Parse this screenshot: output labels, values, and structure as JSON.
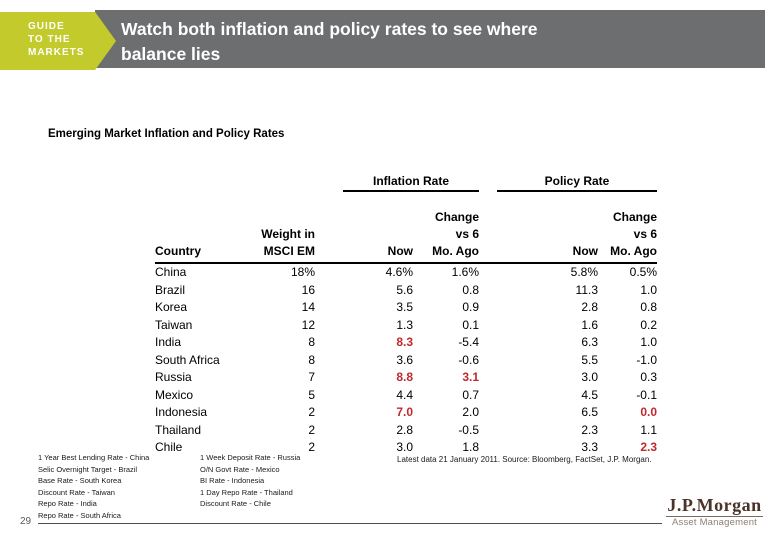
{
  "header": {
    "badge": "GUIDE\nTO THE\nMARKETS",
    "title": "Watch both inflation and policy rates to see where\nbalance lies"
  },
  "subtitle": "Emerging Market  Inflation and Policy Rates",
  "table": {
    "groups": {
      "inflation": "Inflation Rate",
      "policy": "Policy Rate"
    },
    "headers": {
      "country": "Country",
      "weight": "Weight in\nMSCI EM",
      "now": "Now",
      "change": "Change\nvs 6\nMo. Ago"
    },
    "rows": [
      {
        "country": "China",
        "weight": "18%",
        "infl_now": "4.6%",
        "infl_chg": "1.6%",
        "pol_now": "5.8%",
        "pol_chg": "0.5%",
        "red": []
      },
      {
        "country": "Brazil",
        "weight": "16",
        "infl_now": "5.6",
        "infl_chg": "0.8",
        "pol_now": "11.3",
        "pol_chg": "1.0",
        "red": []
      },
      {
        "country": "Korea",
        "weight": "14",
        "infl_now": "3.5",
        "infl_chg": "0.9",
        "pol_now": "2.8",
        "pol_chg": "0.8",
        "red": []
      },
      {
        "country": "Taiwan",
        "weight": "12",
        "infl_now": "1.3",
        "infl_chg": "0.1",
        "pol_now": "1.6",
        "pol_chg": "0.2",
        "red": []
      },
      {
        "country": "India",
        "weight": "8",
        "infl_now": "8.3",
        "infl_chg": "-5.4",
        "pol_now": "6.3",
        "pol_chg": "1.0",
        "red": [
          "infl_now"
        ]
      },
      {
        "country": "South Africa",
        "weight": "8",
        "infl_now": "3.6",
        "infl_chg": "-0.6",
        "pol_now": "5.5",
        "pol_chg": "-1.0",
        "red": []
      },
      {
        "country": "Russia",
        "weight": "7",
        "infl_now": "8.8",
        "infl_chg": "3.1",
        "pol_now": "3.0",
        "pol_chg": "0.3",
        "red": [
          "infl_now",
          "infl_chg"
        ]
      },
      {
        "country": "Mexico",
        "weight": "5",
        "infl_now": "4.4",
        "infl_chg": "0.7",
        "pol_now": "4.5",
        "pol_chg": "-0.1",
        "red": []
      },
      {
        "country": "Indonesia",
        "weight": "2",
        "infl_now": "7.0",
        "infl_chg": "2.0",
        "pol_now": "6.5",
        "pol_chg": "0.0",
        "red": [
          "infl_now",
          "pol_chg"
        ]
      },
      {
        "country": "Thailand",
        "weight": "2",
        "infl_now": "2.8",
        "infl_chg": "-0.5",
        "pol_now": "2.3",
        "pol_chg": "1.1",
        "red": []
      },
      {
        "country": "Chile",
        "weight": "2",
        "infl_now": "3.0",
        "infl_chg": "1.8",
        "pol_now": "3.3",
        "pol_chg": "2.3",
        "red": [
          "pol_chg"
        ]
      }
    ]
  },
  "footnotes": {
    "col1": [
      "1 Year Best Lending Rate - China",
      "Selic Overnight Target - Brazil",
      "Base Rate - South Korea",
      "Discount Rate - Taiwan",
      "Repo Rate - India",
      "Repo Rate - South Africa"
    ],
    "col2": [
      "1 Week Deposit Rate - Russia",
      "O/N Govt Rate - Mexico",
      "BI Rate - Indonesia",
      "1 Day Repo Rate - Thailand",
      "Discount Rate - Chile"
    ]
  },
  "source": "Latest data 21 January 2011. Source:  Bloomberg, FactSet, J.P. Morgan.",
  "page_number": "29",
  "logo": {
    "brand": "J.P.Morgan",
    "division": "Asset Management"
  },
  "colors": {
    "accent_yellow": "#c3ca2b",
    "header_gray": "#6d6e70",
    "highlight_red": "#c0282d"
  }
}
